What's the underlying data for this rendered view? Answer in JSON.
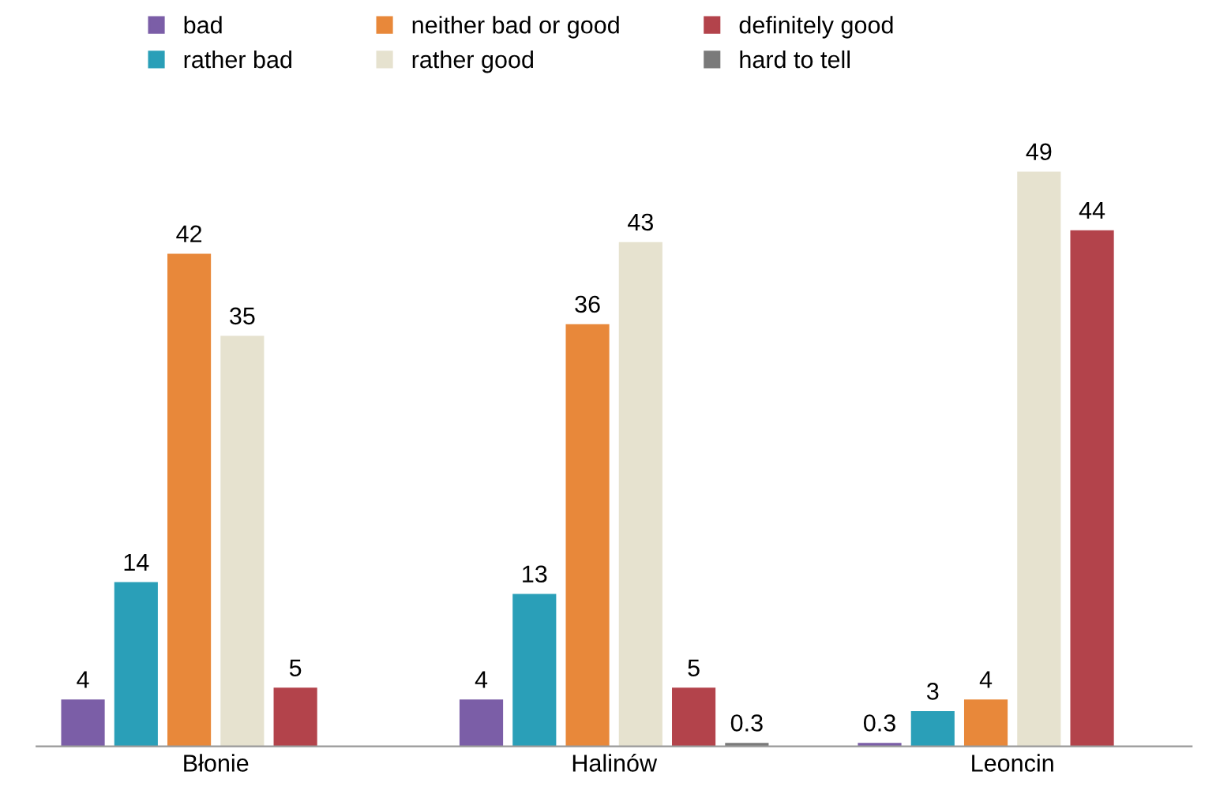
{
  "chart_data": {
    "type": "bar",
    "categories": [
      "Błonie",
      "Halinów",
      "Leoncin"
    ],
    "series": [
      {
        "name": "bad",
        "color": "#7b5ea7",
        "values": [
          4,
          4,
          0.3
        ]
      },
      {
        "name": "rather bad",
        "color": "#2a9fb8",
        "values": [
          14,
          13,
          3
        ]
      },
      {
        "name": "neither bad or good",
        "color": "#e8883a",
        "values": [
          42,
          36,
          4
        ]
      },
      {
        "name": "rather good",
        "color": "#e6e2cf",
        "values": [
          35,
          43,
          49
        ]
      },
      {
        "name": "definitely good",
        "color": "#b3434b",
        "values": [
          5,
          5,
          44
        ]
      },
      {
        "name": "hard to tell",
        "color": "#7a7a7a",
        "values": [
          null,
          0.3,
          null
        ]
      }
    ],
    "data_labels": true,
    "legend": "top",
    "grid": false
  }
}
